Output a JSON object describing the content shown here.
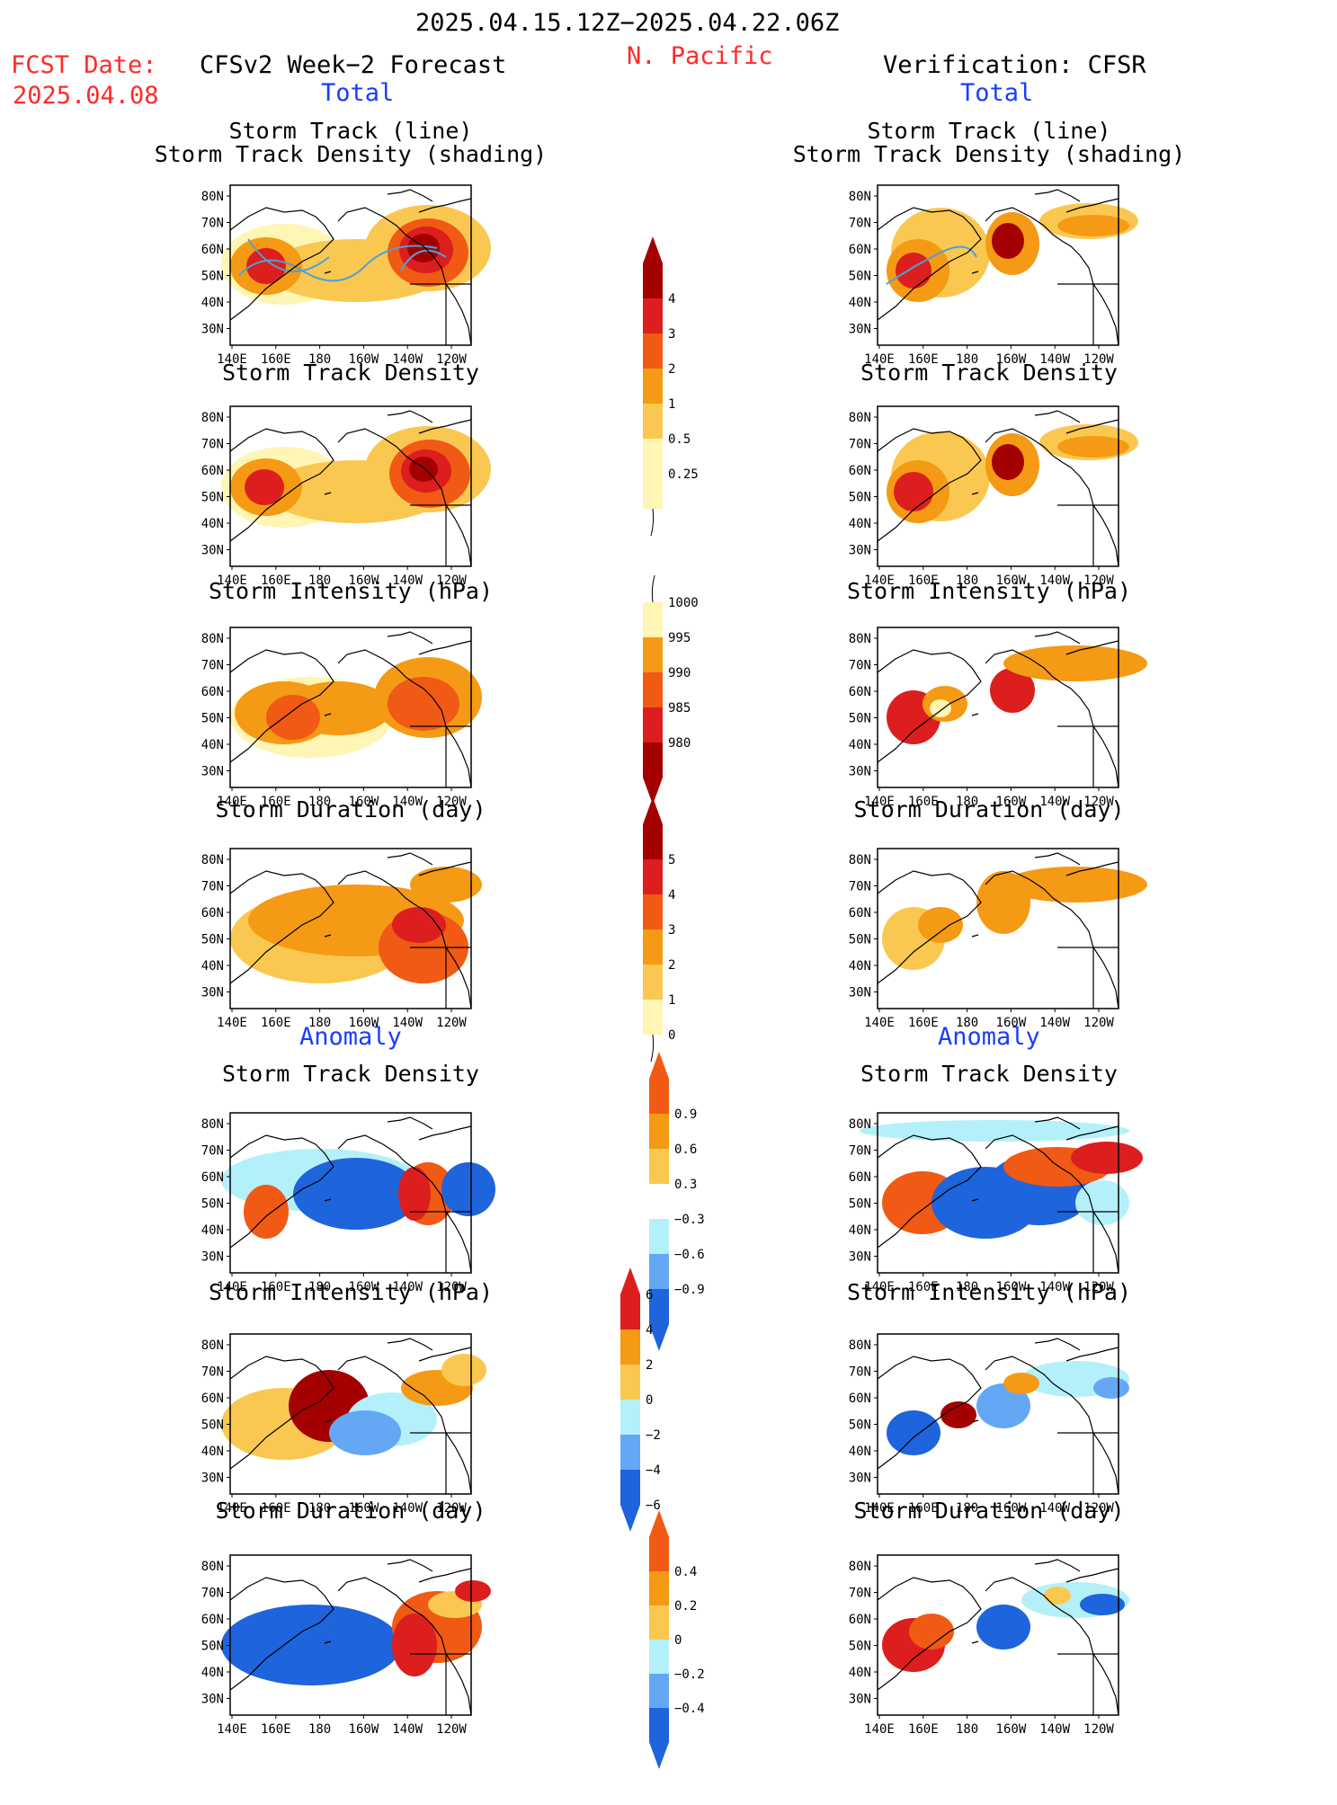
{
  "header": {
    "date_range": "2025.04.15.12Z−2025.04.22.06Z",
    "region": "N. Pacific",
    "fcst_label": "FCST Date:",
    "fcst_date": "2025.04.08",
    "left_title": "CFSv2 Week−2 Forecast",
    "right_title": "Verification: CFSR",
    "total_label": "Total",
    "anomaly_label": "Anomaly"
  },
  "panels": {
    "storm_track_line_1": "Storm Track (line)",
    "storm_track_line_2": "Storm Track Density (shading)",
    "storm_track_density": "Storm Track Density",
    "storm_intensity": "Storm Intensity (hPa)",
    "storm_duration": "Storm Duration (day)"
  },
  "axes": {
    "lat_labels": [
      "80N",
      "70N",
      "60N",
      "50N",
      "40N",
      "30N"
    ],
    "lon_labels": [
      "140E",
      "160E",
      "180",
      "160W",
      "140W",
      "120W"
    ]
  },
  "colorbars": {
    "density_total": [
      "4",
      "3",
      "2",
      "1",
      "0.5",
      "0.25"
    ],
    "intensity_total": [
      "1000",
      "995",
      "990",
      "985",
      "980"
    ],
    "duration_total": [
      "5",
      "4",
      "3",
      "2",
      "1",
      "0"
    ],
    "density_anom": [
      "0.9",
      "0.6",
      "0.3",
      "−0.3",
      "−0.6",
      "−0.9"
    ],
    "intensity_anom": [
      "6",
      "4",
      "2",
      "0",
      "−2",
      "−4",
      "−6"
    ],
    "duration_anom": [
      "0.4",
      "0.2",
      "0",
      "−0.2",
      "−0.4"
    ]
  },
  "colors": {
    "title_red": "#ff2a2a",
    "title_blue": "#1a3cff",
    "dark_red": "#a50000",
    "red": "#dc1e1e",
    "orange_red": "#f05a14",
    "orange": "#f59a14",
    "light_orange": "#fac850",
    "pale_yellow": "#fff5b4",
    "light_blue": "#b4f0fa",
    "mid_blue": "#64a8f5",
    "blue": "#1e64dc"
  }
}
